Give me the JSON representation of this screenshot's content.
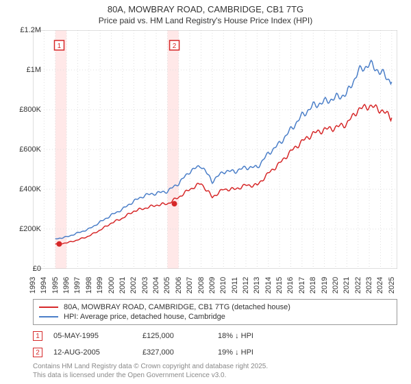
{
  "title_line1": "80A, MOWBRAY ROAD, CAMBRIDGE, CB1 7TG",
  "title_line2": "Price paid vs. HM Land Registry's House Price Index (HPI)",
  "chart": {
    "type": "line",
    "background_color": "#ffffff",
    "grid_color": "#dddddd",
    "border_color": "#bfbfbf",
    "x_years": [
      1993,
      1994,
      1995,
      1996,
      1997,
      1998,
      1999,
      2000,
      2001,
      2002,
      2003,
      2004,
      2005,
      2006,
      2007,
      2008,
      2009,
      2010,
      2011,
      2012,
      2013,
      2014,
      2015,
      2016,
      2017,
      2018,
      2019,
      2020,
      2021,
      2022,
      2023,
      2024,
      2025
    ],
    "xlim": [
      1993,
      2025.5
    ],
    "ylim": [
      0,
      1200000
    ],
    "ytick_step": 200000,
    "yticks": [
      "£0",
      "£200K",
      "£400K",
      "£600K",
      "£800K",
      "£1M",
      "£1.2M"
    ],
    "band1": {
      "start": 1995,
      "end": 1996,
      "color": "#ffe8e8"
    },
    "band2": {
      "start": 2005,
      "end": 2006,
      "color": "#ffe8e8"
    },
    "series": [
      {
        "name": "price_paid",
        "color": "#d62728",
        "linewidth": 1.5,
        "years": [
          1995,
          1996,
          1997,
          1998,
          1999,
          2000,
          2001,
          2002,
          2003,
          2004,
          2005,
          2006,
          2007,
          2008,
          2009,
          2010,
          2011,
          2012,
          2013,
          2014,
          2015,
          2016,
          2017,
          2018,
          2019,
          2020,
          2021,
          2022,
          2023,
          2024,
          2025
        ],
        "values": [
          125000,
          130000,
          145000,
          165000,
          195000,
          230000,
          255000,
          290000,
          305000,
          320000,
          327000,
          360000,
          400000,
          430000,
          360000,
          400000,
          400000,
          420000,
          420000,
          480000,
          530000,
          590000,
          640000,
          680000,
          700000,
          710000,
          730000,
          800000,
          820000,
          800000,
          760000
        ]
      },
      {
        "name": "hpi",
        "color": "#4a7ec8",
        "linewidth": 1.5,
        "years": [
          1995,
          1996,
          1997,
          1998,
          1999,
          2000,
          2001,
          2002,
          2003,
          2004,
          2005,
          2006,
          2007,
          2008,
          2009,
          2010,
          2011,
          2012,
          2013,
          2014,
          2015,
          2016,
          2017,
          2018,
          2019,
          2020,
          2021,
          2022,
          2023,
          2024,
          2025
        ],
        "values": [
          150000,
          160000,
          180000,
          200000,
          235000,
          270000,
          300000,
          340000,
          370000,
          380000,
          390000,
          430000,
          490000,
          520000,
          440000,
          490000,
          490000,
          510000,
          510000,
          580000,
          630000,
          700000,
          770000,
          820000,
          840000,
          860000,
          880000,
          990000,
          1030000,
          990000,
          940000
        ]
      }
    ],
    "markers": [
      {
        "label": "1",
        "year": 1995.35,
        "value": 125000,
        "color": "#d62728",
        "ytop": 59
      },
      {
        "label": "2",
        "year": 2005.62,
        "value": 327000,
        "color": "#d62728",
        "ytop": 59
      }
    ]
  },
  "legend": [
    {
      "color": "#d62728",
      "label": "80A, MOWBRAY ROAD, CAMBRIDGE, CB1 7TG (detached house)"
    },
    {
      "color": "#4a7ec8",
      "label": "HPI: Average price, detached house, Cambridge"
    }
  ],
  "transactions": [
    {
      "n": "1",
      "color": "#d62728",
      "date": "05-MAY-1995",
      "price": "£125,000",
      "pct": "18% ↓ HPI"
    },
    {
      "n": "2",
      "color": "#d62728",
      "date": "12-AUG-2005",
      "price": "£327,000",
      "pct": "19% ↓ HPI"
    }
  ],
  "footer_line1": "Contains HM Land Registry data © Crown copyright and database right 2025.",
  "footer_line2": "This data is licensed under the Open Government Licence v3.0."
}
